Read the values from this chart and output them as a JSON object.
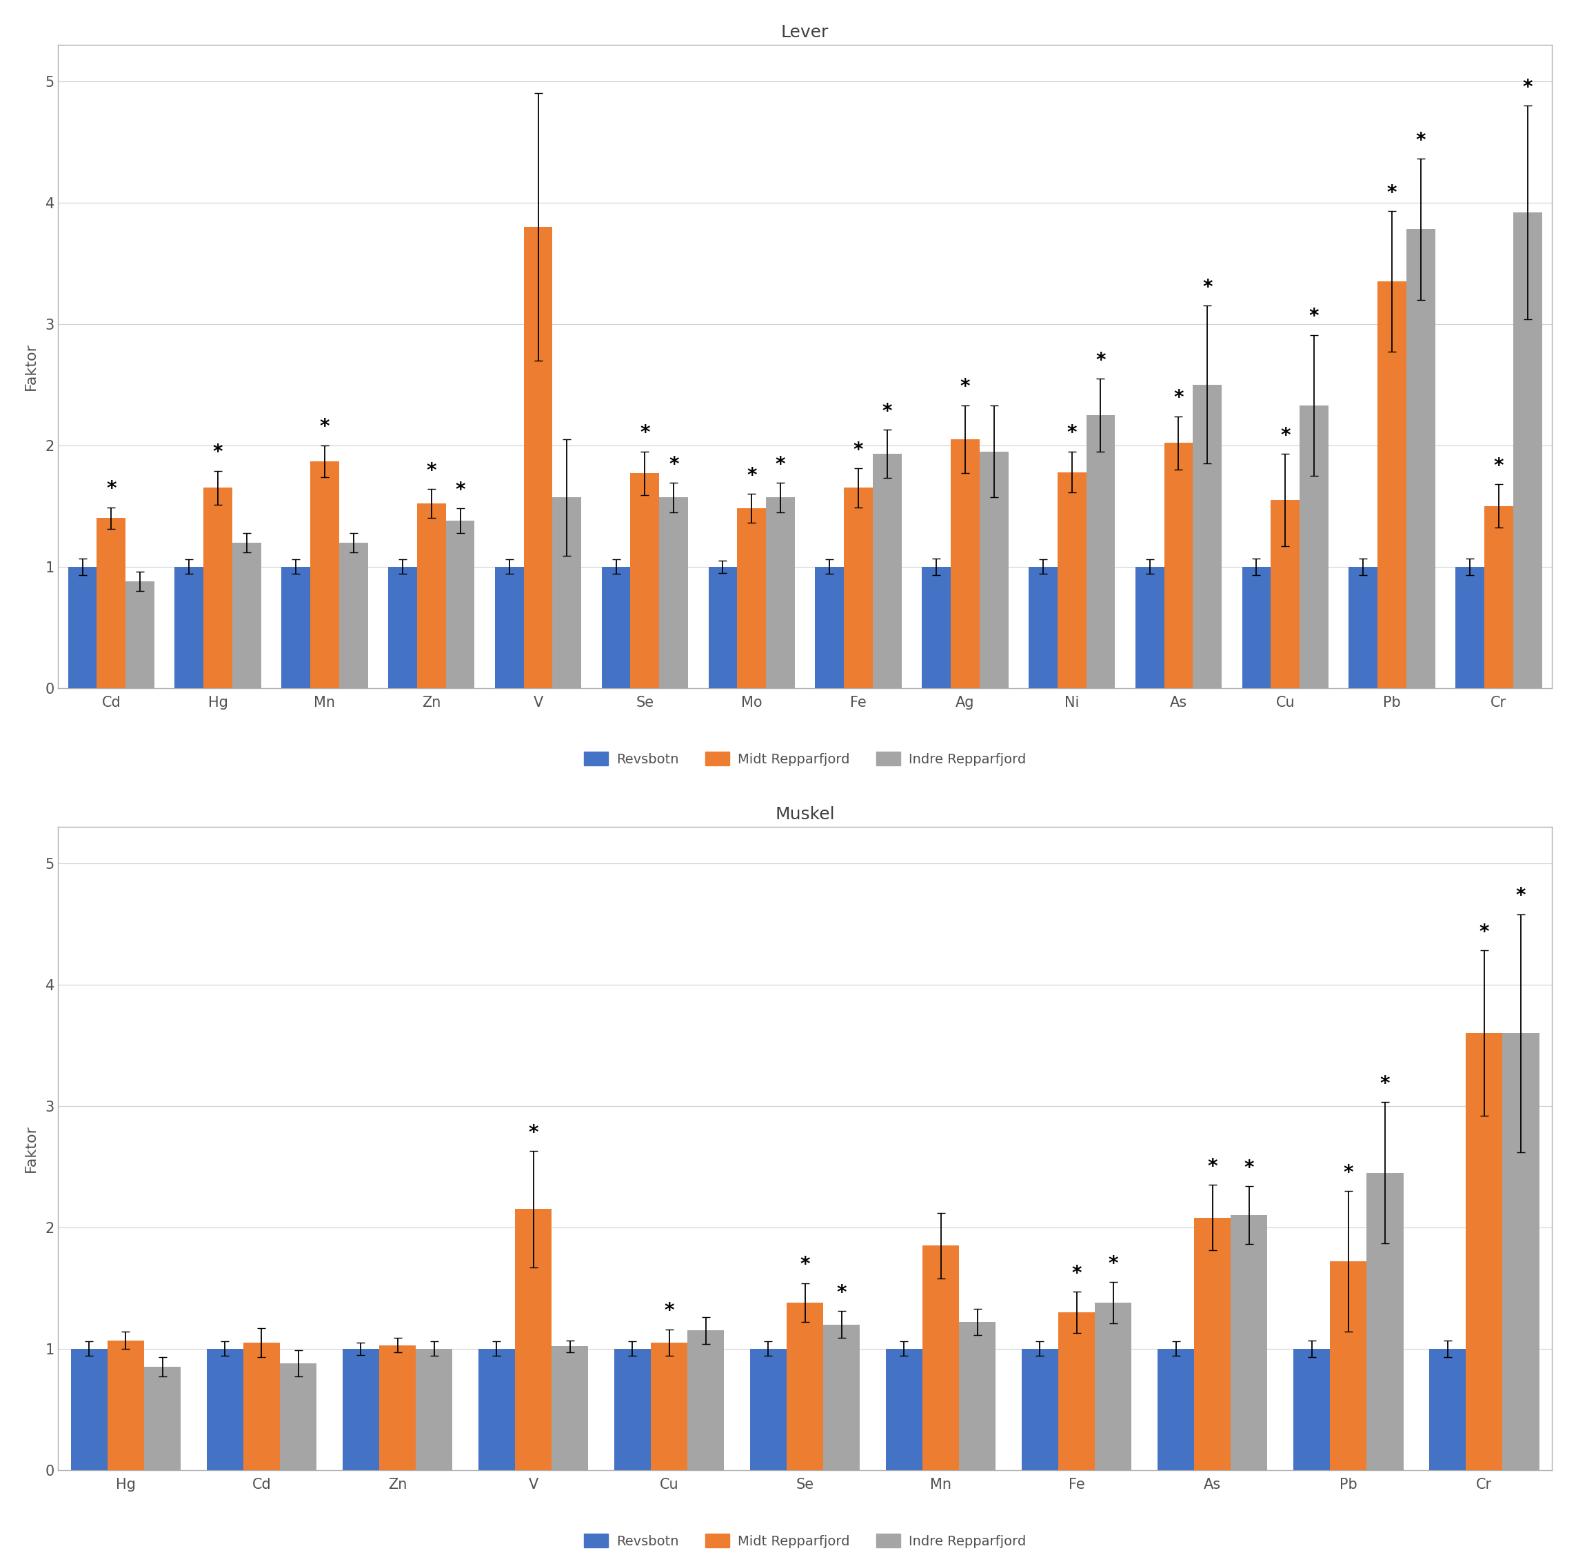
{
  "lever": {
    "title": "Lever",
    "categories": [
      "Cd",
      "Hg",
      "Mn",
      "Zn",
      "V",
      "Se",
      "Mo",
      "Fe",
      "Ag",
      "Ni",
      "As",
      "Cu",
      "Pb",
      "Cr"
    ],
    "revsbotn": [
      1.0,
      1.0,
      1.0,
      1.0,
      1.0,
      1.0,
      1.0,
      1.0,
      1.0,
      1.0,
      1.0,
      1.0,
      1.0,
      1.0
    ],
    "revsbotn_err": [
      0.07,
      0.06,
      0.06,
      0.06,
      0.06,
      0.06,
      0.05,
      0.06,
      0.07,
      0.06,
      0.06,
      0.07,
      0.07,
      0.07
    ],
    "midt": [
      1.4,
      1.65,
      1.87,
      1.52,
      3.8,
      1.77,
      1.48,
      1.65,
      2.05,
      1.78,
      2.02,
      1.55,
      3.35,
      1.5
    ],
    "midt_err": [
      0.09,
      0.14,
      0.13,
      0.12,
      1.1,
      0.18,
      0.12,
      0.16,
      0.28,
      0.17,
      0.22,
      0.38,
      0.58,
      0.18
    ],
    "indre": [
      0.88,
      1.2,
      1.2,
      1.38,
      1.57,
      1.57,
      1.57,
      1.93,
      1.95,
      2.25,
      2.5,
      2.33,
      3.78,
      3.92
    ],
    "indre_err": [
      0.08,
      0.08,
      0.08,
      0.1,
      0.48,
      0.12,
      0.12,
      0.2,
      0.38,
      0.3,
      0.65,
      0.58,
      0.58,
      0.88
    ],
    "asterisks": {
      "Cd": {
        "midt": true,
        "indre": false
      },
      "Hg": {
        "midt": true,
        "indre": false
      },
      "Mn": {
        "midt": true,
        "indre": false
      },
      "Zn": {
        "midt": true,
        "indre": true
      },
      "V": {
        "midt": false,
        "indre": false
      },
      "Se": {
        "midt": true,
        "indre": true
      },
      "Mo": {
        "midt": true,
        "indre": true
      },
      "Fe": {
        "midt": true,
        "indre": true
      },
      "Ag": {
        "midt": true,
        "indre": false
      },
      "Ni": {
        "midt": true,
        "indre": true
      },
      "As": {
        "midt": true,
        "indre": true
      },
      "Cu": {
        "midt": true,
        "indre": true
      },
      "Pb": {
        "midt": true,
        "indre": true
      },
      "Cr": {
        "midt": true,
        "indre": true
      }
    }
  },
  "muskel": {
    "title": "Muskel",
    "categories": [
      "Hg",
      "Cd",
      "Zn",
      "V",
      "Cu",
      "Se",
      "Mn",
      "Fe",
      "As",
      "Pb",
      "Cr"
    ],
    "revsbotn": [
      1.0,
      1.0,
      1.0,
      1.0,
      1.0,
      1.0,
      1.0,
      1.0,
      1.0,
      1.0,
      1.0
    ],
    "revsbotn_err": [
      0.06,
      0.06,
      0.05,
      0.06,
      0.06,
      0.06,
      0.06,
      0.06,
      0.06,
      0.07,
      0.07
    ],
    "midt": [
      1.07,
      1.05,
      1.03,
      2.15,
      1.05,
      1.38,
      1.85,
      1.3,
      2.08,
      1.72,
      3.6
    ],
    "midt_err": [
      0.07,
      0.12,
      0.06,
      0.48,
      0.11,
      0.16,
      0.27,
      0.17,
      0.27,
      0.58,
      0.68
    ],
    "indre": [
      0.85,
      0.88,
      1.0,
      1.02,
      1.15,
      1.2,
      1.22,
      1.38,
      2.1,
      2.45,
      3.6
    ],
    "indre_err": [
      0.08,
      0.11,
      0.06,
      0.05,
      0.11,
      0.11,
      0.11,
      0.17,
      0.24,
      0.58,
      0.98
    ],
    "asterisks": {
      "Hg": {
        "midt": false,
        "indre": false
      },
      "Cd": {
        "midt": false,
        "indre": false
      },
      "Zn": {
        "midt": false,
        "indre": false
      },
      "V": {
        "midt": true,
        "indre": false
      },
      "Cu": {
        "midt": true,
        "indre": false
      },
      "Se": {
        "midt": true,
        "indre": true
      },
      "Mn": {
        "midt": false,
        "indre": false
      },
      "Fe": {
        "midt": true,
        "indre": true
      },
      "As": {
        "midt": true,
        "indre": true
      },
      "Pb": {
        "midt": true,
        "indre": true
      },
      "Cr": {
        "midt": true,
        "indre": true
      }
    }
  },
  "colors": {
    "revsbotn": "#4472C4",
    "midt": "#ED7D31",
    "indre": "#A5A5A5"
  },
  "ylabel": "Faktor",
  "ylim": [
    0,
    5.3
  ],
  "yticks": [
    0,
    1,
    2,
    3,
    4,
    5
  ],
  "legend_labels": [
    "Revsbotn",
    "Midt Repparfjord",
    "Indre Repparfjord"
  ],
  "bar_width": 0.27
}
